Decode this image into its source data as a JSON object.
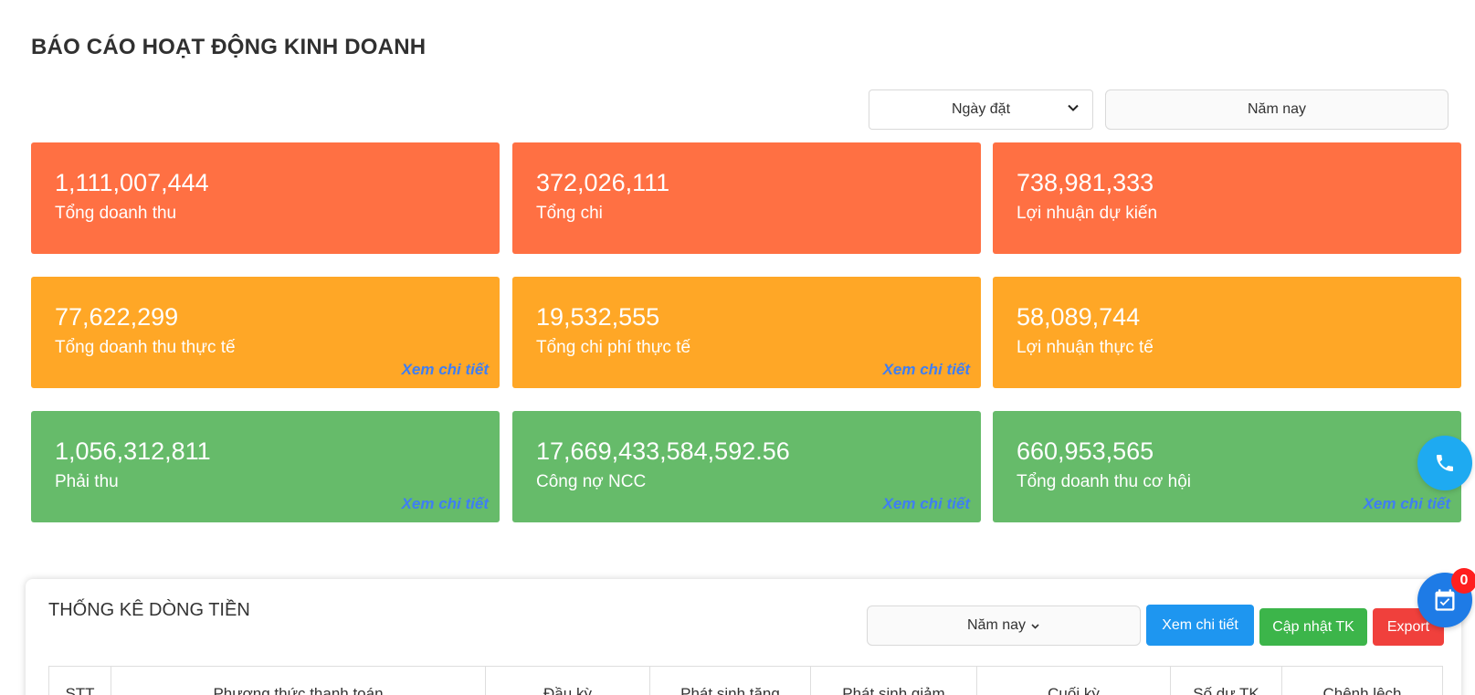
{
  "page_title": "BÁO CÁO HOẠT ĐỘNG KINH DOANH",
  "filters": {
    "date_type": "Ngày đặt",
    "period": "Năm nay"
  },
  "cards": [
    {
      "value": "1,111,007,444",
      "label": "Tổng doanh thu",
      "detail": ""
    },
    {
      "value": "372,026,111",
      "label": "Tổng chi",
      "detail": ""
    },
    {
      "value": "738,981,333",
      "label": "Lợi nhuận dự kiến",
      "detail": ""
    },
    {
      "value": "77,622,299",
      "label": "Tổng doanh thu thực tế",
      "detail": "Xem chi tiết"
    },
    {
      "value": "19,532,555",
      "label": "Tổng chi phí thực tế",
      "detail": "Xem chi tiết"
    },
    {
      "value": "58,089,744",
      "label": "Lợi nhuận thực tế",
      "detail": ""
    },
    {
      "value": "1,056,312,811",
      "label": "Phải thu",
      "detail": "Xem chi tiết"
    },
    {
      "value": "17,669,433,584,592.56",
      "label": "Công nợ NCC",
      "detail": "Xem chi tiết"
    },
    {
      "value": "660,953,565",
      "label": "Tổng doanh thu cơ hội",
      "detail": "Xem chi tiết"
    }
  ],
  "card_colors": {
    "red": "#ff7043",
    "orange": "#ffa726",
    "green": "#66bb6a"
  },
  "floating": {
    "phone_icon": "phone-icon",
    "calendar_icon": "calendar-check-icon",
    "calendar_badge": "0"
  },
  "cashflow": {
    "title": "THỐNG KÊ DÒNG TIỀN",
    "period": "Năm nay",
    "buttons": {
      "detail": "Xem chi tiết",
      "update": "Cập nhật TK",
      "export": "Export"
    },
    "columns": [
      "STT",
      "Phương thức thanh toán",
      "Đầu kỳ",
      "Phát sinh tăng",
      "Phát sinh giảm",
      "Cuối kỳ",
      "Số dư TK",
      "Chênh lệch"
    ]
  }
}
